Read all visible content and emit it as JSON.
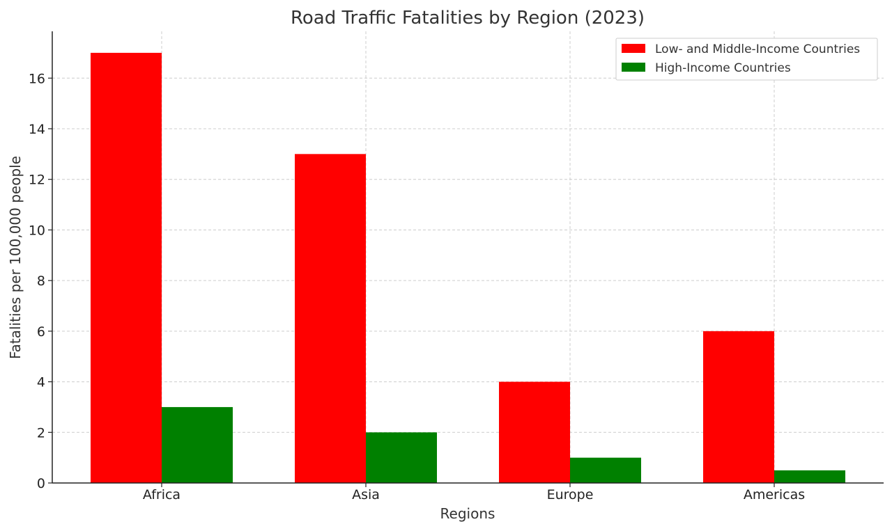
{
  "chart_data": {
    "type": "bar",
    "title": "Road Traffic Fatalities by Region (2023)",
    "xlabel": "Regions",
    "ylabel": "Fatalities per 100,000 people",
    "categories": [
      "Africa",
      "Asia",
      "Europe",
      "Americas"
    ],
    "series": [
      {
        "name": "Low- and Middle-Income Countries",
        "color": "#ff0000",
        "values": [
          17,
          13,
          4,
          6
        ]
      },
      {
        "name": "High-Income Countries",
        "color": "#008000",
        "values": [
          3,
          2,
          1,
          0.5
        ]
      }
    ],
    "ylim": [
      0,
      17.85
    ],
    "yticks": [
      0,
      2,
      4,
      6,
      8,
      10,
      12,
      14,
      16
    ],
    "grid": true,
    "legend_position": "top-right"
  }
}
